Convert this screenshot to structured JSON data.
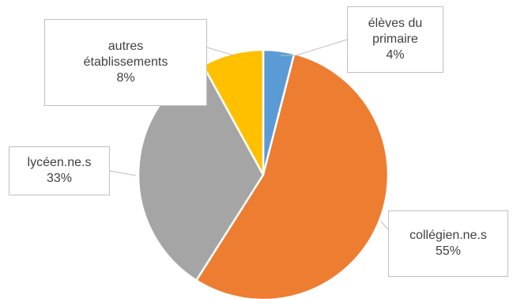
{
  "chart_data": {
    "type": "pie",
    "slices": [
      {
        "label_lines": [
          "élèves du",
          "primaire"
        ],
        "pct_label": "4%",
        "value": 4,
        "color": "#5b9bd5"
      },
      {
        "label_lines": [
          "collégien.ne.s"
        ],
        "pct_label": "55%",
        "value": 55,
        "color": "#ed7d31"
      },
      {
        "label_lines": [
          "lycéen.ne.s"
        ],
        "pct_label": "33%",
        "value": 33,
        "color": "#a5a5a5"
      },
      {
        "label_lines": [
          "autres",
          "établissements"
        ],
        "pct_label": "8%",
        "value": 8,
        "color": "#ffc000"
      }
    ],
    "start_angle_deg": 0,
    "direction": "clockwise"
  }
}
